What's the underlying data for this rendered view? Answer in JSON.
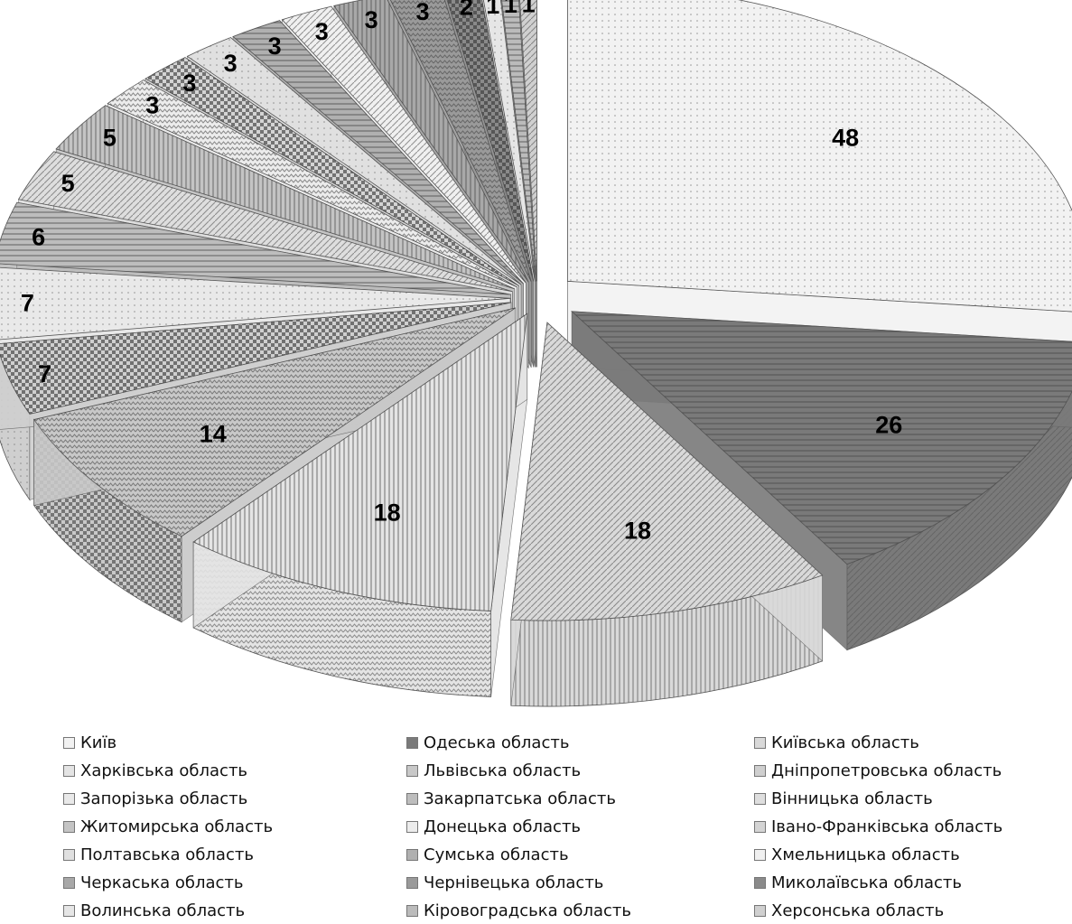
{
  "chart_data": {
    "type": "pie",
    "style": "3d-exploded",
    "title": "",
    "data_labels": true,
    "legend_position": "bottom",
    "slices": [
      {
        "name": "Київ",
        "value": 48,
        "color": "#f2f2f2"
      },
      {
        "name": "Одеська область",
        "value": 26,
        "color": "#7a7a7a"
      },
      {
        "name": "Київська область",
        "value": 18,
        "color": "#d9d9d9"
      },
      {
        "name": "Харківська область",
        "value": 18,
        "color": "#e4e4e4"
      },
      {
        "name": "Львівська область",
        "value": 14,
        "color": "#c8c8c8"
      },
      {
        "name": "Дніпропетровська область",
        "value": 7,
        "color": "#cfcfcf"
      },
      {
        "name": "Запорізька область",
        "value": 7,
        "color": "#e9e9e9"
      },
      {
        "name": "Закарпатська область",
        "value": 6,
        "color": "#bdbdbd"
      },
      {
        "name": "Вінницька область",
        "value": 5,
        "color": "#dedede"
      },
      {
        "name": "Житомирська область",
        "value": 5,
        "color": "#c4c4c4"
      },
      {
        "name": "Донецька область",
        "value": 3,
        "color": "#ececec"
      },
      {
        "name": "Івано-Франківська область",
        "value": 3,
        "color": "#d4d4d4"
      },
      {
        "name": "Полтавська область",
        "value": 3,
        "color": "#e0e0e0"
      },
      {
        "name": "Сумська область",
        "value": 3,
        "color": "#b0b0b0"
      },
      {
        "name": "Хмельницька область",
        "value": 3,
        "color": "#f0f0f0"
      },
      {
        "name": "Черкаська область",
        "value": 3,
        "color": "#a8a8a8"
      },
      {
        "name": "Чернівецька область",
        "value": 3,
        "color": "#9a9a9a"
      },
      {
        "name": "Миколаївська область",
        "value": 2,
        "color": "#8a8a8a"
      },
      {
        "name": "Волинська область",
        "value": 1,
        "color": "#e6e6e6"
      },
      {
        "name": "Кіровоградська область",
        "value": 1,
        "color": "#bbbbbb"
      },
      {
        "name": "Херсонська область",
        "value": 1,
        "color": "#d0d0d0"
      }
    ]
  }
}
